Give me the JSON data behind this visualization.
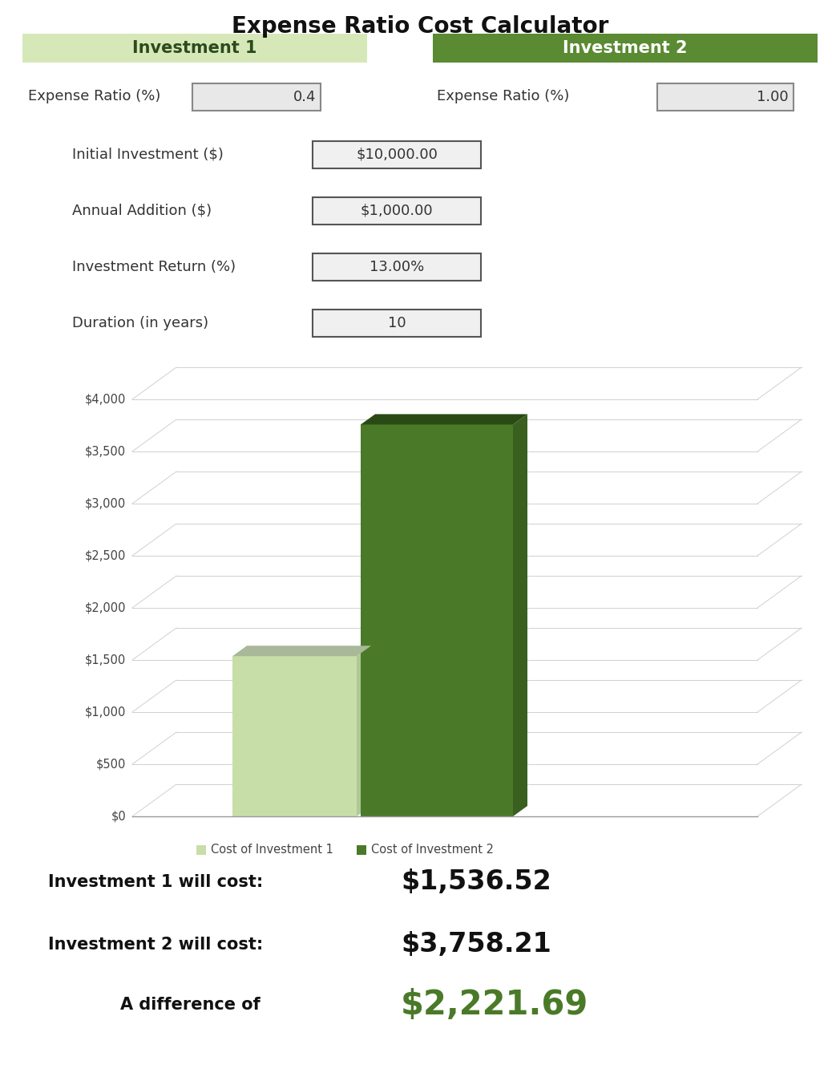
{
  "title": "Expense Ratio Cost Calculator",
  "inv1_label": "Investment 1",
  "inv2_label": "Investment 2",
  "inv1_header_color": "#d6e8b8",
  "inv2_header_color": "#5a8a32",
  "inv1_header_text_color": "#2d4a1e",
  "inv2_header_text_color": "#ffffff",
  "expense_ratio_1": "0.4",
  "expense_ratio_2": "1.00",
  "initial_investment": "$10,000.00",
  "annual_addition": "$1,000.00",
  "investment_return": "13.00%",
  "duration": "10",
  "bar1_value": 1536.52,
  "bar2_value": 3758.21,
  "bar1_color": "#c8dea8",
  "bar1_top_color": "#a8b898",
  "bar1_side_color": "#b0c898",
  "bar2_color": "#4a7a28",
  "bar2_top_color": "#2a4a15",
  "bar2_side_color": "#3a6020",
  "ytick_labels": [
    "$0",
    "$500",
    "$1,000",
    "$1,500",
    "$2,000",
    "$2,500",
    "$3,000",
    "$3,500",
    "$4,000"
  ],
  "ytick_values": [
    0,
    500,
    1000,
    1500,
    2000,
    2500,
    3000,
    3500,
    4000
  ],
  "legend_label1": "Cost of Investment 1",
  "legend_label2": "Cost of Investment 2",
  "cost1_label": "Investment 1 will cost:",
  "cost2_label": "Investment 2 will cost:",
  "diff_label": "A difference of",
  "cost1_value": "$1,536.52",
  "cost2_value": "$3,758.21",
  "diff_value": "$2,221.69",
  "diff_color": "#4a7a28",
  "bg_color": "#ffffff",
  "grid_color": "#cccccc",
  "text_color": "#333333",
  "box_edge_color": "#888888",
  "box_face_color": "#e8e8e8"
}
